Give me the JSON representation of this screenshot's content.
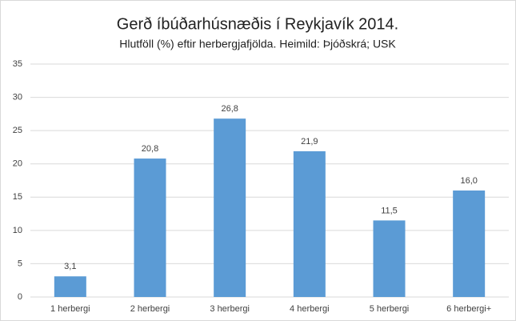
{
  "chart_data": {
    "type": "bar",
    "title": "Gerð íbúðarhúsnæðis í Reykjavík 2014.",
    "subtitle": "Hlutföll (%) eftir herbergjafjölda. Heimild: Þjóðskrá; USK",
    "categories": [
      "1 herbergi",
      "2 herbergi",
      "3 herbergi",
      "4 herbergi",
      "5 herbergi",
      "6 herbergi+"
    ],
    "values": [
      3.1,
      20.8,
      26.8,
      21.9,
      11.5,
      16.0
    ],
    "value_labels": [
      "3,1",
      "20,8",
      "26,8",
      "21,9",
      "11,5",
      "16,0"
    ],
    "color": "#5b9bd5",
    "ylim": [
      0,
      35
    ],
    "yticks": [
      0,
      5,
      10,
      15,
      20,
      25,
      30,
      35
    ],
    "grid": true
  }
}
